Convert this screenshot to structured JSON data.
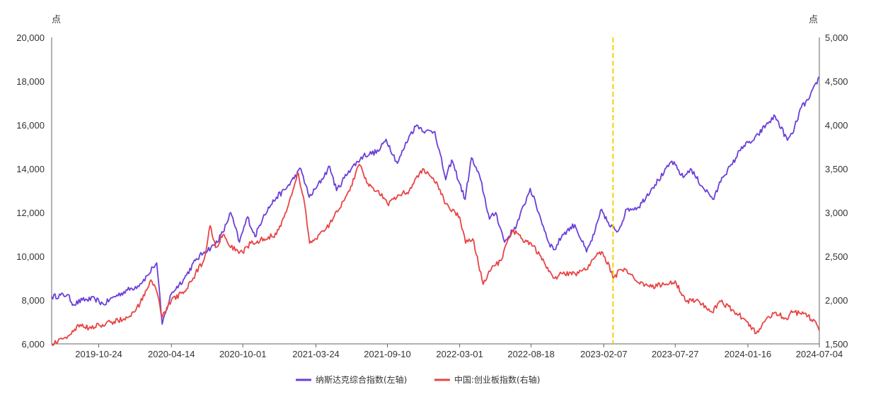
{
  "chart_data": {
    "type": "line",
    "left_axis": {
      "unit": "点",
      "min": 6000,
      "max": 20000,
      "ticks": [
        "6,000",
        "8,000",
        "10,000",
        "12,000",
        "14,000",
        "16,000",
        "18,000",
        "20,000"
      ],
      "tick_values": [
        6000,
        8000,
        10000,
        12000,
        14000,
        16000,
        18000,
        20000
      ]
    },
    "right_axis": {
      "unit": "点",
      "min": 1500,
      "max": 5000,
      "ticks": [
        "1,500",
        "2,000",
        "2,500",
        "3,000",
        "3,500",
        "4,000",
        "4,500",
        "5,000"
      ],
      "tick_values": [
        1500,
        2000,
        2500,
        3000,
        3500,
        4000,
        4500,
        5000
      ]
    },
    "x_range": [
      "2019-07-04",
      "2024-07-04"
    ],
    "x_ticks": [
      "2019-10-24",
      "2020-04-14",
      "2020-10-01",
      "2021-03-24",
      "2021-09-10",
      "2022-03-01",
      "2022-08-18",
      "2023-02-07",
      "2023-07-27",
      "2024-01-16",
      "2024-07-04"
    ],
    "marker_line": {
      "date": "2023-03-01",
      "color": "#f5d000"
    },
    "series": [
      {
        "name": "纳斯达克综合指数(左轴)",
        "axis": "left",
        "color": "#6a3fd8",
        "points": [
          [
            "2019-07-04",
            8150
          ],
          [
            "2019-08-10",
            8250
          ],
          [
            "2019-08-25",
            7800
          ],
          [
            "2019-09-15",
            8000
          ],
          [
            "2019-10-15",
            8050
          ],
          [
            "2019-11-05",
            7800
          ],
          [
            "2019-11-25",
            8100
          ],
          [
            "2019-12-31",
            8450
          ],
          [
            "2020-01-25",
            8650
          ],
          [
            "2020-02-19",
            9150
          ],
          [
            "2020-03-01",
            9500
          ],
          [
            "2020-03-10",
            9700
          ],
          [
            "2020-03-23",
            6900
          ],
          [
            "2020-04-01",
            7500
          ],
          [
            "2020-04-14",
            8300
          ],
          [
            "2020-05-15",
            9000
          ],
          [
            "2020-06-10",
            9800
          ],
          [
            "2020-07-01",
            10200
          ],
          [
            "2020-07-25",
            10500
          ],
          [
            "2020-08-15",
            11100
          ],
          [
            "2020-09-02",
            12000
          ],
          [
            "2020-09-23",
            10650
          ],
          [
            "2020-10-12",
            11800
          ],
          [
            "2020-10-30",
            10900
          ],
          [
            "2020-11-20",
            11900
          ],
          [
            "2020-12-20",
            12700
          ],
          [
            "2021-01-10",
            13050
          ],
          [
            "2021-02-16",
            14000
          ],
          [
            "2021-03-08",
            12700
          ],
          [
            "2021-03-24",
            13100
          ],
          [
            "2021-04-26",
            14100
          ],
          [
            "2021-05-12",
            13000
          ],
          [
            "2021-06-10",
            13900
          ],
          [
            "2021-07-15",
            14600
          ],
          [
            "2021-08-20",
            14800
          ],
          [
            "2021-09-07",
            15350
          ],
          [
            "2021-10-04",
            14250
          ],
          [
            "2021-11-01",
            15500
          ],
          [
            "2021-11-19",
            16000
          ],
          [
            "2021-12-10",
            15700
          ],
          [
            "2022-01-01",
            15700
          ],
          [
            "2022-01-27",
            13500
          ],
          [
            "2022-02-10",
            14400
          ],
          [
            "2022-03-14",
            12600
          ],
          [
            "2022-03-29",
            14500
          ],
          [
            "2022-04-20",
            13500
          ],
          [
            "2022-05-11",
            11700
          ],
          [
            "2022-05-26",
            12000
          ],
          [
            "2022-06-16",
            10650
          ],
          [
            "2022-07-15",
            11450
          ],
          [
            "2022-08-16",
            13100
          ],
          [
            "2022-09-05",
            12000
          ],
          [
            "2022-09-30",
            10600
          ],
          [
            "2022-10-13",
            10300
          ],
          [
            "2022-11-01",
            11000
          ],
          [
            "2022-11-30",
            11450
          ],
          [
            "2022-12-28",
            10200
          ],
          [
            "2023-01-15",
            11000
          ],
          [
            "2023-02-02",
            12150
          ],
          [
            "2023-02-20",
            11400
          ],
          [
            "2023-03-13",
            11150
          ],
          [
            "2023-04-03",
            12150
          ],
          [
            "2023-05-01",
            12250
          ],
          [
            "2023-06-01",
            13100
          ],
          [
            "2023-06-30",
            13800
          ],
          [
            "2023-07-19",
            14350
          ],
          [
            "2023-08-15",
            13600
          ],
          [
            "2023-09-01",
            14000
          ],
          [
            "2023-09-29",
            13200
          ],
          [
            "2023-10-27",
            12600
          ],
          [
            "2023-11-15",
            13600
          ],
          [
            "2023-12-10",
            14200
          ],
          [
            "2024-01-01",
            15000
          ],
          [
            "2024-01-30",
            15300
          ],
          [
            "2024-02-28",
            16000
          ],
          [
            "2024-03-21",
            16400
          ],
          [
            "2024-04-19",
            15300
          ],
          [
            "2024-05-01",
            15600
          ],
          [
            "2024-05-22",
            16800
          ],
          [
            "2024-06-10",
            17200
          ],
          [
            "2024-07-04",
            18200
          ]
        ]
      },
      {
        "name": "中国:创业板指数(右轴)",
        "axis": "right",
        "color": "#e84444",
        "points": [
          [
            "2019-07-04",
            1500
          ],
          [
            "2019-08-01",
            1560
          ],
          [
            "2019-08-25",
            1640
          ],
          [
            "2019-09-10",
            1720
          ],
          [
            "2019-10-01",
            1680
          ],
          [
            "2019-11-10",
            1730
          ],
          [
            "2019-12-31",
            1800
          ],
          [
            "2020-01-20",
            1880
          ],
          [
            "2020-02-10",
            2050
          ],
          [
            "2020-02-25",
            2230
          ],
          [
            "2020-03-10",
            2100
          ],
          [
            "2020-03-23",
            1800
          ],
          [
            "2020-04-14",
            2000
          ],
          [
            "2020-05-15",
            2100
          ],
          [
            "2020-06-10",
            2300
          ],
          [
            "2020-06-30",
            2450
          ],
          [
            "2020-07-15",
            2850
          ],
          [
            "2020-07-28",
            2600
          ],
          [
            "2020-08-15",
            2750
          ],
          [
            "2020-09-02",
            2600
          ],
          [
            "2020-09-30",
            2550
          ],
          [
            "2020-10-20",
            2650
          ],
          [
            "2020-11-20",
            2700
          ],
          [
            "2020-12-20",
            2750
          ],
          [
            "2021-01-15",
            3050
          ],
          [
            "2021-02-10",
            3450
          ],
          [
            "2021-02-25",
            3100
          ],
          [
            "2021-03-09",
            2650
          ],
          [
            "2021-03-24",
            2700
          ],
          [
            "2021-04-15",
            2800
          ],
          [
            "2021-05-20",
            3050
          ],
          [
            "2021-06-15",
            3300
          ],
          [
            "2021-07-05",
            3550
          ],
          [
            "2021-07-28",
            3300
          ],
          [
            "2021-08-20",
            3250
          ],
          [
            "2021-09-10",
            3100
          ],
          [
            "2021-10-05",
            3200
          ],
          [
            "2021-11-01",
            3250
          ],
          [
            "2021-12-03",
            3500
          ],
          [
            "2021-12-20",
            3420
          ],
          [
            "2022-01-05",
            3350
          ],
          [
            "2022-01-27",
            3100
          ],
          [
            "2022-03-01",
            2950
          ],
          [
            "2022-03-15",
            2650
          ],
          [
            "2022-04-01",
            2700
          ],
          [
            "2022-04-26",
            2180
          ],
          [
            "2022-05-15",
            2350
          ],
          [
            "2022-06-06",
            2450
          ],
          [
            "2022-07-05",
            2800
          ],
          [
            "2022-07-28",
            2700
          ],
          [
            "2022-08-18",
            2650
          ],
          [
            "2022-09-10",
            2500
          ],
          [
            "2022-10-10",
            2250
          ],
          [
            "2022-11-01",
            2300
          ],
          [
            "2022-12-01",
            2300
          ],
          [
            "2022-12-28",
            2350
          ],
          [
            "2023-01-28",
            2550
          ],
          [
            "2023-02-07",
            2500
          ],
          [
            "2023-02-20",
            2400
          ],
          [
            "2023-03-01",
            2250
          ],
          [
            "2023-03-20",
            2350
          ],
          [
            "2023-04-10",
            2300
          ],
          [
            "2023-05-01",
            2200
          ],
          [
            "2023-06-01",
            2150
          ],
          [
            "2023-06-30",
            2180
          ],
          [
            "2023-07-27",
            2220
          ],
          [
            "2023-08-20",
            1990
          ],
          [
            "2023-09-15",
            2000
          ],
          [
            "2023-10-23",
            1860
          ],
          [
            "2023-11-10",
            1990
          ],
          [
            "2023-12-20",
            1850
          ],
          [
            "2024-01-16",
            1750
          ],
          [
            "2024-02-05",
            1620
          ],
          [
            "2024-02-28",
            1780
          ],
          [
            "2024-03-20",
            1860
          ],
          [
            "2024-04-16",
            1790
          ],
          [
            "2024-05-01",
            1860
          ],
          [
            "2024-05-20",
            1850
          ],
          [
            "2024-06-20",
            1780
          ],
          [
            "2024-07-04",
            1650
          ]
        ]
      }
    ],
    "legend": {
      "position": "bottom-center"
    },
    "grid": false
  }
}
